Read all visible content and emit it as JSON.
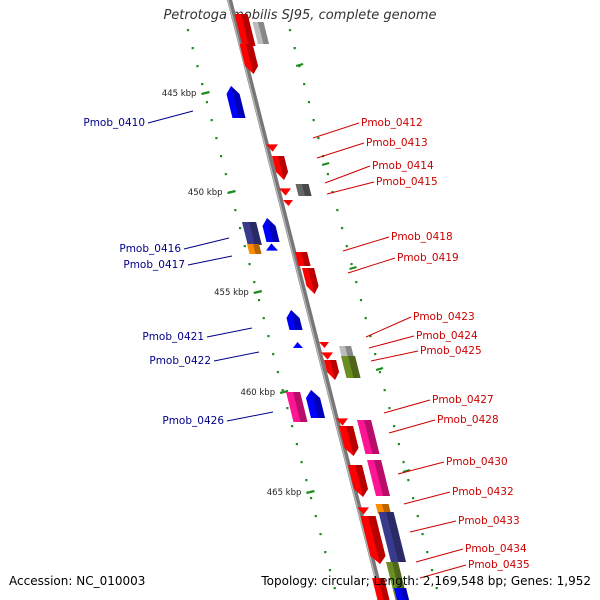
{
  "title": "Petrotoga mobilis SJ95, complete genome",
  "footer": {
    "accession": "Accession: NC_010003",
    "topology": "Topology: circular; Length: 2,169,548 bp; Genes: 1,952"
  },
  "colors": {
    "backbone": "#808080",
    "tick": "#1e8c1e",
    "forward_label": "#00008b",
    "reverse_label": "#cc0000",
    "red": "#ff0000",
    "blue": "#0000ff",
    "pink": "#ff1493",
    "navy": "#3a3a8c",
    "orange": "#ff8c00",
    "gray": "#bbbbbb",
    "darkgray": "#666666",
    "olive": "#6b8e23"
  },
  "scale_labels": [
    "445 kbp",
    "450 kbp",
    "455 kbp",
    "460 kbp",
    "465 kbp"
  ],
  "left_labels": [
    "Pmob_0410",
    "Pmob_0416",
    "Pmob_0417",
    "Pmob_0421",
    "Pmob_0422",
    "Pmob_0426"
  ],
  "right_labels": [
    "Pmob_0412",
    "Pmob_0413",
    "Pmob_0414",
    "Pmob_0415",
    "Pmob_0418",
    "Pmob_0419",
    "Pmob_0423",
    "Pmob_0424",
    "Pmob_0425",
    "Pmob_0427",
    "Pmob_0428",
    "Pmob_0430",
    "Pmob_0432",
    "Pmob_0433",
    "Pmob_0434",
    "Pmob_0435"
  ]
}
